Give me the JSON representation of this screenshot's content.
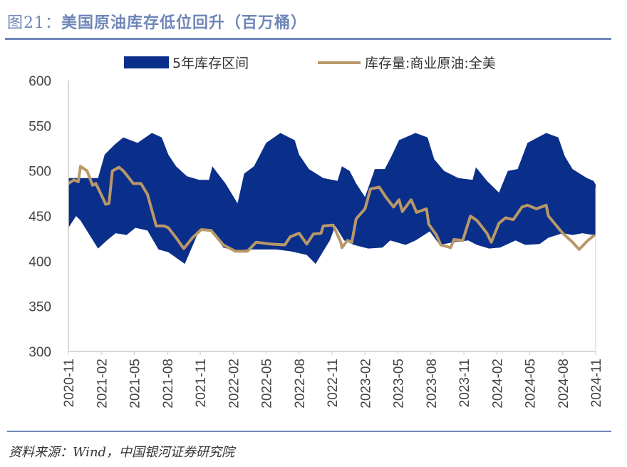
{
  "title": {
    "prefix": "图21：",
    "text": "美国原油库存低位回升（百万桶）"
  },
  "source": "资料来源：Wind，中国银河证券研究院",
  "colors": {
    "band": "#0a2f8a",
    "line": "#b99868",
    "accent": "#6f86b8"
  },
  "chart_data": {
    "type": "area",
    "title": "美国原油库存低位回升（百万桶）",
    "x_unit": "months since 2020-11",
    "xlim": [
      0,
      48
    ],
    "ylim": [
      300,
      600
    ],
    "yticks": [
      300,
      350,
      400,
      450,
      500,
      550,
      600
    ],
    "xtick_labels": [
      "2020-11",
      "2021-02",
      "2021-05",
      "2021-08",
      "2021-11",
      "2022-02",
      "2022-05",
      "2022-08",
      "2022-11",
      "2023-02",
      "2023-05",
      "2023-08",
      "2023-11",
      "2024-02",
      "2024-05",
      "2024-08",
      "2024-11"
    ],
    "legend": {
      "placement": "top",
      "entries": [
        "5年库存区间",
        "库存量:商业原油:全美"
      ]
    },
    "series": [
      {
        "name": "5年库存区间",
        "kind": "band",
        "upper": [
          [
            0,
            492
          ],
          [
            2.7,
            492
          ],
          [
            3.3,
            518
          ],
          [
            4.2,
            529
          ],
          [
            5.0,
            537
          ],
          [
            6.3,
            531
          ],
          [
            7.6,
            542
          ],
          [
            8.5,
            537
          ],
          [
            9.1,
            518
          ],
          [
            9.8,
            505
          ],
          [
            10.8,
            494
          ],
          [
            11.9,
            490
          ],
          [
            12.8,
            490
          ],
          [
            13.1,
            505
          ],
          [
            14.3,
            486
          ],
          [
            15.4,
            464
          ],
          [
            16.0,
            497
          ],
          [
            16.9,
            505
          ],
          [
            18.0,
            531
          ],
          [
            19.3,
            542
          ],
          [
            20.6,
            534
          ],
          [
            21.0,
            518
          ],
          [
            21.9,
            502
          ],
          [
            23.2,
            492
          ],
          [
            24.5,
            489
          ],
          [
            24.9,
            505
          ],
          [
            25.6,
            500
          ],
          [
            26.2,
            486
          ],
          [
            27.0,
            471
          ],
          [
            27.9,
            502
          ],
          [
            28.8,
            502
          ],
          [
            29.4,
            516
          ],
          [
            30.1,
            534
          ],
          [
            31.6,
            542
          ],
          [
            32.7,
            537
          ],
          [
            33.3,
            513
          ],
          [
            34.2,
            500
          ],
          [
            35.5,
            492
          ],
          [
            36.8,
            490
          ],
          [
            37.1,
            504
          ],
          [
            38.1,
            489
          ],
          [
            39.2,
            476
          ],
          [
            40.0,
            500
          ],
          [
            40.9,
            502
          ],
          [
            41.8,
            531
          ],
          [
            43.5,
            542
          ],
          [
            44.6,
            537
          ],
          [
            45.2,
            516
          ],
          [
            45.9,
            502
          ],
          [
            47.2,
            492
          ],
          [
            47.8,
            489
          ],
          [
            48,
            485
          ]
        ],
        "lower": [
          [
            0,
            437
          ],
          [
            0.7,
            450
          ],
          [
            1.1,
            445
          ],
          [
            2.7,
            414
          ],
          [
            3.5,
            423
          ],
          [
            4.3,
            431
          ],
          [
            5.3,
            429
          ],
          [
            6.1,
            437
          ],
          [
            7.2,
            434
          ],
          [
            8.2,
            413
          ],
          [
            9.1,
            410
          ],
          [
            10.6,
            397
          ],
          [
            11.9,
            434
          ],
          [
            13.0,
            434
          ],
          [
            14.1,
            415
          ],
          [
            15.4,
            411
          ],
          [
            16.3,
            413
          ],
          [
            17.6,
            413
          ],
          [
            18.9,
            413
          ],
          [
            20.2,
            411
          ],
          [
            21.7,
            407
          ],
          [
            22.5,
            397
          ],
          [
            23.8,
            423
          ],
          [
            24.3,
            439
          ],
          [
            25.1,
            423
          ],
          [
            26.0,
            418
          ],
          [
            27.3,
            414
          ],
          [
            28.6,
            415
          ],
          [
            29.3,
            423
          ],
          [
            30.7,
            418
          ],
          [
            31.6,
            423
          ],
          [
            32.9,
            433
          ],
          [
            33.8,
            418
          ],
          [
            35.1,
            421
          ],
          [
            36.4,
            423
          ],
          [
            37.2,
            418
          ],
          [
            38.3,
            414
          ],
          [
            39.3,
            415
          ],
          [
            40.7,
            423
          ],
          [
            41.6,
            418
          ],
          [
            42.9,
            419
          ],
          [
            43.7,
            426
          ],
          [
            45.0,
            431
          ],
          [
            45.9,
            429
          ],
          [
            46.8,
            431
          ],
          [
            47.8,
            429
          ],
          [
            48,
            429
          ]
        ]
      },
      {
        "name": "库存量:商业原油:全美",
        "kind": "line",
        "points": [
          [
            0,
            486
          ],
          [
            0.5,
            490
          ],
          [
            0.9,
            488
          ],
          [
            1.1,
            505
          ],
          [
            1.7,
            500
          ],
          [
            2.2,
            484
          ],
          [
            2.5,
            486
          ],
          [
            2.9,
            476
          ],
          [
            3.4,
            463
          ],
          [
            3.7,
            464
          ],
          [
            4.0,
            500
          ],
          [
            4.6,
            504
          ],
          [
            5.0,
            500
          ],
          [
            5.4,
            494
          ],
          [
            5.9,
            486
          ],
          [
            6.6,
            486
          ],
          [
            7.2,
            474
          ],
          [
            8.0,
            439
          ],
          [
            8.7,
            439
          ],
          [
            9.1,
            437
          ],
          [
            9.8,
            426
          ],
          [
            10.5,
            414
          ],
          [
            11.3,
            426
          ],
          [
            12.1,
            435
          ],
          [
            13.0,
            434
          ],
          [
            14.1,
            418
          ],
          [
            15.2,
            411
          ],
          [
            16.3,
            411
          ],
          [
            17.1,
            421
          ],
          [
            18.4,
            419
          ],
          [
            19.7,
            418
          ],
          [
            20.2,
            427
          ],
          [
            21.0,
            431
          ],
          [
            21.7,
            419
          ],
          [
            22.3,
            430
          ],
          [
            23.0,
            431
          ],
          [
            23.2,
            439
          ],
          [
            24.1,
            440
          ],
          [
            24.8,
            421
          ],
          [
            24.9,
            415
          ],
          [
            25.4,
            423
          ],
          [
            25.8,
            421
          ],
          [
            26.2,
            447
          ],
          [
            27.0,
            458
          ],
          [
            27.5,
            480
          ],
          [
            28.3,
            482
          ],
          [
            28.9,
            471
          ],
          [
            29.6,
            460
          ],
          [
            30.1,
            468
          ],
          [
            30.4,
            455
          ],
          [
            31.2,
            468
          ],
          [
            31.7,
            454
          ],
          [
            32.6,
            458
          ],
          [
            32.8,
            441
          ],
          [
            33.5,
            429
          ],
          [
            33.9,
            418
          ],
          [
            34.8,
            415
          ],
          [
            35.1,
            424
          ],
          [
            35.9,
            423
          ],
          [
            36.6,
            450
          ],
          [
            37.2,
            445
          ],
          [
            38.1,
            431
          ],
          [
            38.5,
            421
          ],
          [
            39.2,
            442
          ],
          [
            39.8,
            448
          ],
          [
            40.5,
            446
          ],
          [
            41.3,
            460
          ],
          [
            41.8,
            462
          ],
          [
            42.6,
            458
          ],
          [
            43.5,
            462
          ],
          [
            43.7,
            450
          ],
          [
            45.0,
            431
          ],
          [
            45.9,
            421
          ],
          [
            46.5,
            413
          ],
          [
            47.2,
            422
          ],
          [
            47.9,
            429
          ]
        ]
      }
    ]
  }
}
